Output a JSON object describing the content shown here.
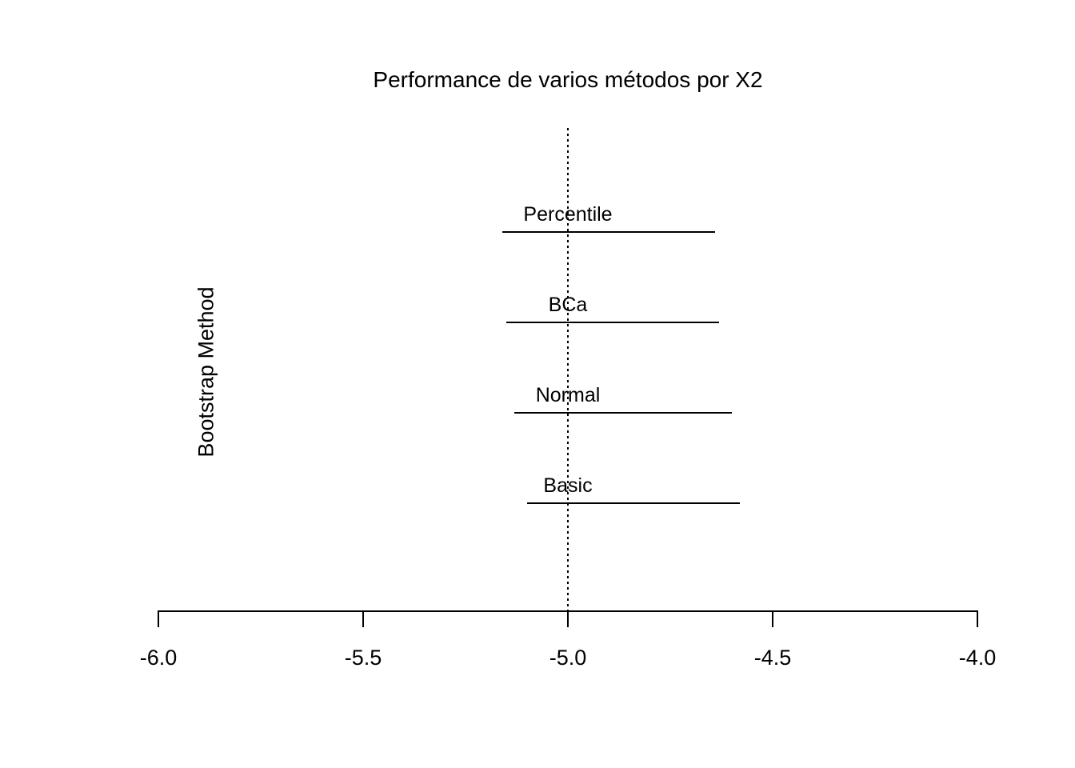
{
  "chart_data": {
    "type": "line",
    "variant": "horizontal-confidence-intervals",
    "title": "Performance de varios métodos por X2",
    "xlabel": "",
    "ylabel": "Bootstrap Method",
    "xlim": [
      -6.0,
      -4.0
    ],
    "x_ticks": [
      -6.0,
      -5.5,
      -5.0,
      -4.5,
      -4.0
    ],
    "x_tick_labels": [
      "-6.0",
      "-5.5",
      "-5.0",
      "-4.5",
      "-4.0"
    ],
    "grid": false,
    "legend": null,
    "reference_line": {
      "x": -5.0,
      "style": "dotted"
    },
    "label_anchor_x": -5.0,
    "intervals": [
      {
        "label": "Percentile",
        "lower": -5.16,
        "upper": -4.64
      },
      {
        "label": "BCa",
        "lower": -5.15,
        "upper": -4.63
      },
      {
        "label": "Normal",
        "lower": -5.13,
        "upper": -4.6
      },
      {
        "label": "Basic",
        "lower": -5.1,
        "upper": -4.58
      }
    ],
    "colors": {
      "ink": "#000000",
      "background": "#ffffff"
    }
  }
}
